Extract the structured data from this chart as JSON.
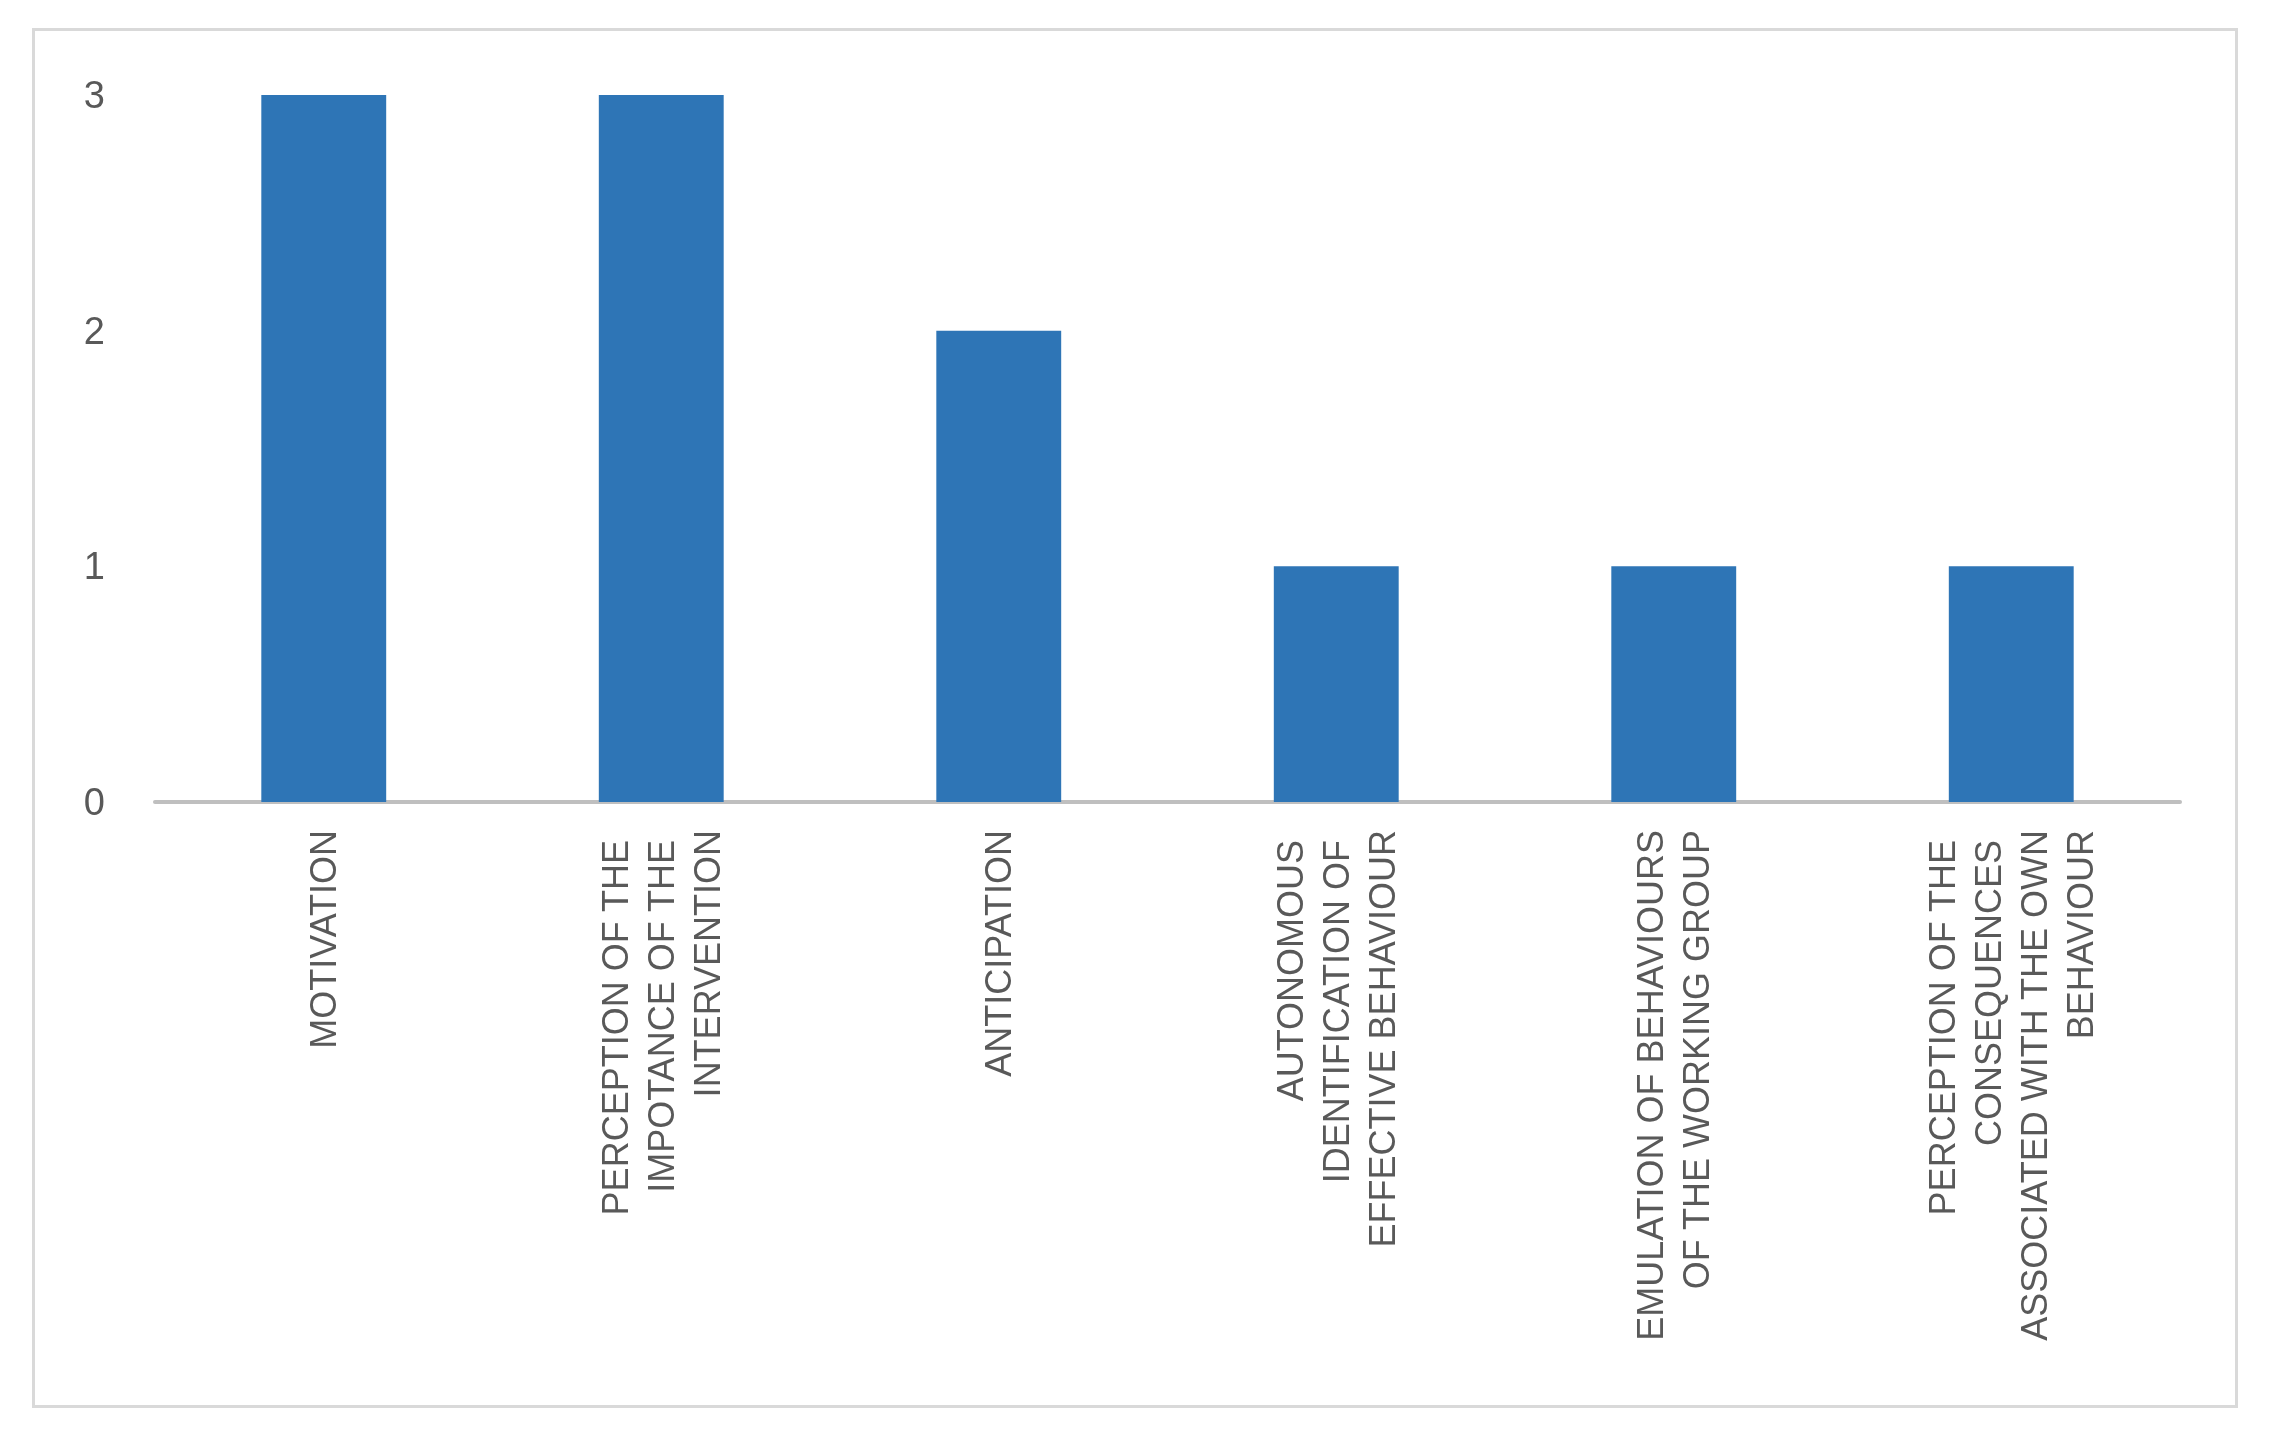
{
  "chart_data": {
    "type": "bar",
    "categories": [
      "MOTIVATION",
      "PERCEPTION OF THE IMPOTANCE OF THE INTERVENTION",
      "ANTICIPATION",
      "AUTONOMOUS IDENTIFICATION OF EFFECTIVE BEHAVIOUR",
      "EMULATION OF BEHAVIOURS OF THE WORKING GROUP",
      "PERCEPTION OF THE CONSEQUENCES ASSOCIATED WITH THE OWN BEHAVIOUR"
    ],
    "values": [
      3,
      3,
      2,
      1,
      1,
      1
    ],
    "color": "#2e75b6",
    "ylim": [
      0,
      3
    ],
    "yticks": [
      0,
      1,
      2,
      3
    ],
    "grid": false
  }
}
